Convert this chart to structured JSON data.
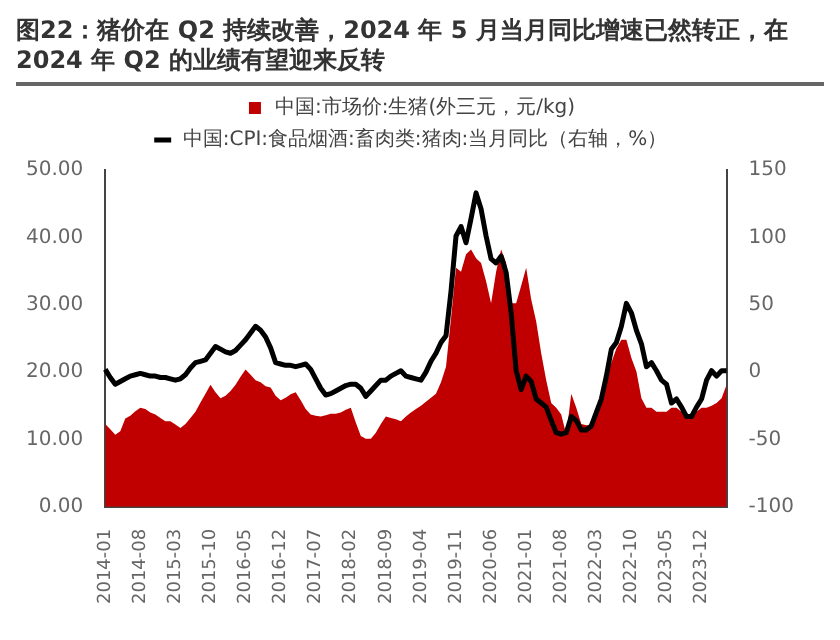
{
  "chart_data": {
    "type": "area",
    "title": "图22：猪价在 Q2 持续改善，2024 年 5 月当月同比增速已然转正，在 2024 年 Q2 的业绩有望迎来反转",
    "categories": [
      "2014-01",
      null,
      null,
      null,
      null,
      null,
      null,
      "2014-08",
      null,
      null,
      null,
      null,
      null,
      null,
      "2015-03",
      null,
      null,
      null,
      null,
      null,
      null,
      "2015-10",
      null,
      null,
      null,
      null,
      null,
      null,
      "2016-05",
      null,
      null,
      null,
      null,
      null,
      null,
      "2016-12",
      null,
      null,
      null,
      null,
      null,
      null,
      "2017-07",
      null,
      null,
      null,
      null,
      null,
      null,
      "2018-02",
      null,
      null,
      null,
      null,
      null,
      null,
      "2018-09",
      null,
      null,
      null,
      null,
      null,
      null,
      "2019-04",
      null,
      null,
      null,
      null,
      null,
      null,
      "2019-11",
      null,
      null,
      null,
      null,
      null,
      null,
      "2020-06",
      null,
      null,
      null,
      null,
      null,
      null,
      "2021-01",
      null,
      null,
      null,
      null,
      null,
      null,
      "2021-08",
      null,
      null,
      null,
      null,
      null,
      null,
      "2022-03",
      null,
      null,
      null,
      null,
      null,
      null,
      "2022-10",
      null,
      null,
      null,
      null,
      null,
      null,
      "2023-05",
      null,
      null,
      null,
      null,
      null,
      null,
      "2023-12",
      null,
      null,
      null,
      null,
      null
    ],
    "series": [
      {
        "name": "中国:市场价:生猪(外三元，元/kg)",
        "type": "area",
        "color": "#c00000",
        "values": [
          12.3,
          11.5,
          10.7,
          11.2,
          13.1,
          13.5,
          14.2,
          14.7,
          14.5,
          14.0,
          13.7,
          13.2,
          12.7,
          12.7,
          12.2,
          11.7,
          12.3,
          13.2,
          14.1,
          15.5,
          16.8,
          18.1,
          17.0,
          16.1,
          16.5,
          17.2,
          18.1,
          19.3,
          20.4,
          19.6,
          18.8,
          18.5,
          17.9,
          17.7,
          16.5,
          15.8,
          16.2,
          16.7,
          17.0,
          15.8,
          14.5,
          13.7,
          13.5,
          13.4,
          13.6,
          13.8,
          13.8,
          14.0,
          14.4,
          14.7,
          12.5,
          10.5,
          10.1,
          10.1,
          11.0,
          12.3,
          13.4,
          13.2,
          13.0,
          12.7,
          13.4,
          14.0,
          14.5,
          15.0,
          15.6,
          16.2,
          16.8,
          18.5,
          20.8,
          28.0,
          35.5,
          34.9,
          37.5,
          38.2,
          36.9,
          36.2,
          33.5,
          30.2,
          34.9,
          38.2,
          36.2,
          30.2,
          30.2,
          32.8,
          35.5,
          30.8,
          27.5,
          22.8,
          18.8,
          15.4,
          14.7,
          13.7,
          10.7,
          16.8,
          14.7,
          12.3,
          12.1,
          12.1,
          14.7,
          16.8,
          19.4,
          21.4,
          23.5,
          24.8,
          24.8,
          22.1,
          20.1,
          16.1,
          14.7,
          14.7,
          14.1,
          14.1,
          14.1,
          14.7,
          14.7,
          14.1,
          13.4,
          13.4,
          14.1,
          14.7,
          14.7,
          15.0,
          15.4,
          16.1,
          18.1
        ]
      },
      {
        "name": "中国:CPI:食品烟酒:畜肉类:猪肉:当月同比（右轴，%）",
        "type": "line",
        "axis": "y2",
        "color": "#000000",
        "values": [
          2,
          -4,
          -9,
          -7,
          -5,
          -3,
          -2,
          -1,
          -2,
          -3,
          -3,
          -4,
          -4,
          -5,
          -6,
          -5,
          -2,
          3,
          7,
          8,
          9,
          14,
          19,
          17,
          15,
          14,
          16,
          20,
          24,
          29,
          34,
          31,
          26,
          18,
          7,
          6,
          5,
          5,
          4,
          5,
          6,
          2,
          -5,
          -12,
          -17,
          -16,
          -14,
          -12,
          -10,
          -9,
          -9,
          -12,
          -18,
          -14,
          -10,
          -6,
          -6,
          -3,
          -1,
          1,
          -3,
          -4,
          -5,
          -6,
          0,
          8,
          14,
          22,
          27,
          60,
          101,
          108,
          96,
          114,
          133,
          121,
          101,
          84,
          81,
          86,
          74,
          44,
          1,
          -13,
          -3,
          -7,
          -20,
          -23,
          -26,
          -36,
          -45,
          -46,
          -45,
          -33,
          -36,
          -43,
          -43,
          -40,
          -30,
          -20,
          -3,
          17,
          22,
          34,
          51,
          44,
          31,
          21,
          4,
          7,
          1,
          -6,
          -9,
          -23,
          -20,
          -26,
          -33,
          -33,
          -26,
          -20,
          -6,
          1,
          -3,
          1,
          1
        ]
      }
    ],
    "ylim": [
      0,
      50
    ],
    "yticks": [
      {
        "value": 0,
        "label": "0.00"
      },
      {
        "value": 10,
        "label": "10.00"
      },
      {
        "value": 20,
        "label": "20.00"
      },
      {
        "value": 30,
        "label": "30.00"
      },
      {
        "value": 40,
        "label": "40.00"
      },
      {
        "value": 50,
        "label": "50.00"
      }
    ],
    "y2lim": [
      -100,
      150
    ],
    "y2ticks": [
      -100,
      -50,
      0,
      50,
      100,
      150
    ],
    "grid": false,
    "legend": "top",
    "marker": "none",
    "line_style": "solid"
  }
}
